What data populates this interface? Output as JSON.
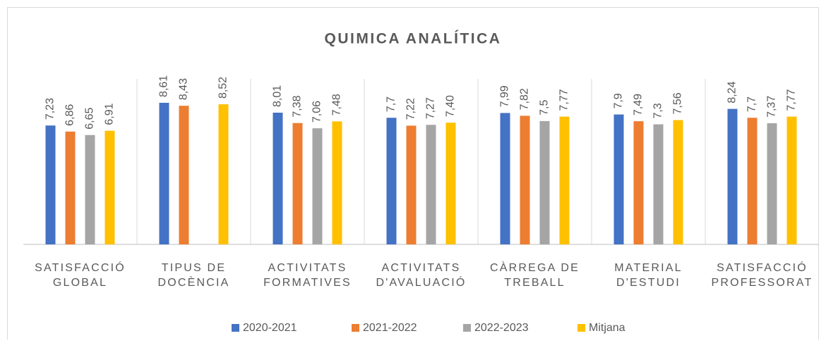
{
  "chart_data": {
    "type": "bar",
    "title": "QUIMICA ANALÍTICA",
    "categories": [
      [
        "SATISFACCIÓ",
        "GLOBAL"
      ],
      [
        "TIPUS DE",
        "DOCÈNCIA"
      ],
      [
        "ACTIVITATS",
        "FORMATIVES"
      ],
      [
        "ACTIVITATS",
        "D'AVALUACIÓ"
      ],
      [
        "CÀRREGA DE",
        "TREBALL"
      ],
      [
        "MATERIAL",
        "D'ESTUDI"
      ],
      [
        "SATISFACCIÓ",
        "PROFESSORAT"
      ]
    ],
    "series": [
      {
        "name": "2020-2021",
        "color": "#4472c4",
        "values": [
          7.23,
          8.61,
          8.01,
          7.7,
          7.99,
          7.9,
          8.24
        ],
        "value_labels": [
          "7,23",
          "8,61",
          "8,01",
          "7,7",
          "7,99",
          "7,9",
          "8,24"
        ]
      },
      {
        "name": "2021-2022",
        "color": "#ed7d31",
        "values": [
          6.86,
          8.43,
          7.38,
          7.22,
          7.82,
          7.49,
          7.7
        ],
        "value_labels": [
          "6,86",
          "8,43",
          "7,38",
          "7,22",
          "7,82",
          "7,49",
          "7,7"
        ]
      },
      {
        "name": "2022-2023",
        "color": "#a5a5a5",
        "values": [
          6.65,
          null,
          7.06,
          7.27,
          7.5,
          7.3,
          7.37
        ],
        "value_labels": [
          "6,65",
          null,
          "7,06",
          "7,27",
          "7,5",
          "7,3",
          "7,37"
        ]
      },
      {
        "name": "Mitjana",
        "color": "#ffc000",
        "values": [
          6.91,
          8.52,
          7.48,
          7.4,
          7.77,
          7.56,
          7.77
        ],
        "value_labels": [
          "6,91",
          "8,52",
          "7,48",
          "7,40",
          "7,77",
          "7,56",
          "7,77"
        ]
      }
    ],
    "ylim": [
      0,
      10
    ]
  }
}
